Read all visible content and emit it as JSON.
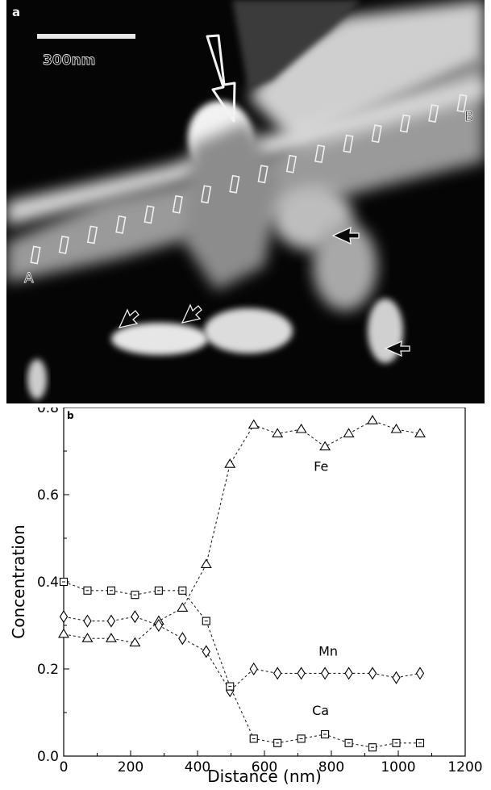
{
  "panel_a": {
    "label": "a",
    "scale_bar_label": "300nm",
    "line_start_label": "A",
    "line_end_label": "B",
    "probe_count": 16
  },
  "chart_data": {
    "type": "line",
    "panel_label": "b",
    "xlabel": "Distance (nm)",
    "ylabel": "Concentration",
    "xlim": [
      0,
      1200
    ],
    "ylim": [
      0,
      0.8
    ],
    "xticks": [
      0,
      200,
      400,
      600,
      800,
      1000,
      1200
    ],
    "yticks": [
      0.0,
      0.2,
      0.4,
      0.6,
      0.8
    ],
    "grid": false,
    "series": [
      {
        "name": "Fe",
        "marker": "triangle",
        "x": [
          0,
          71,
          142,
          213,
          284,
          355,
          426,
          497,
          568,
          639,
          710,
          781,
          852,
          923,
          994,
          1065
        ],
        "y": [
          0.28,
          0.27,
          0.27,
          0.26,
          0.31,
          0.34,
          0.44,
          0.67,
          0.76,
          0.74,
          0.75,
          0.71,
          0.74,
          0.77,
          0.75,
          0.74
        ]
      },
      {
        "name": "Mn",
        "marker": "diamond",
        "x": [
          0,
          71,
          142,
          213,
          284,
          355,
          426,
          497,
          568,
          639,
          710,
          781,
          852,
          923,
          994,
          1065
        ],
        "y": [
          0.32,
          0.31,
          0.31,
          0.32,
          0.3,
          0.27,
          0.24,
          0.15,
          0.2,
          0.19,
          0.19,
          0.19,
          0.19,
          0.19,
          0.18,
          0.19
        ]
      },
      {
        "name": "Ca",
        "marker": "square",
        "x": [
          0,
          71,
          142,
          213,
          284,
          355,
          426,
          497,
          568,
          639,
          710,
          781,
          852,
          923,
          994,
          1065
        ],
        "y": [
          0.4,
          0.38,
          0.38,
          0.37,
          0.38,
          0.38,
          0.31,
          0.16,
          0.04,
          0.03,
          0.04,
          0.05,
          0.03,
          0.02,
          0.03,
          0.03
        ]
      }
    ]
  }
}
